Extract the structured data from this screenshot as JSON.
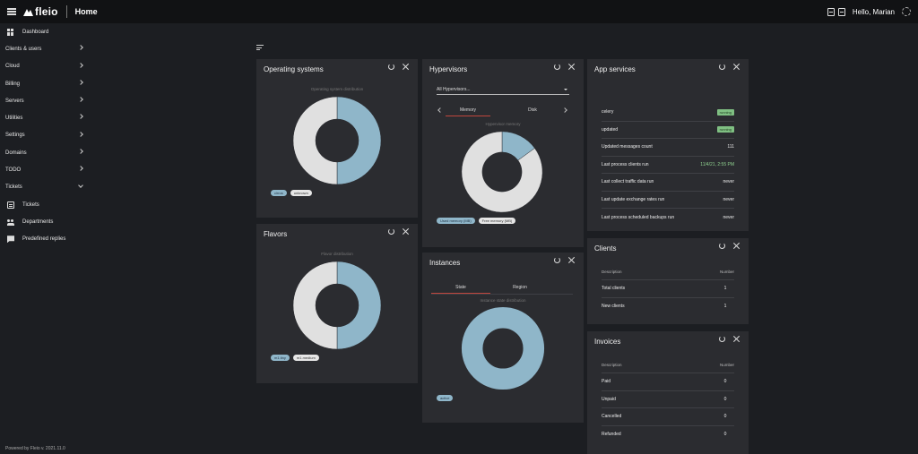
{
  "header": {
    "brand": "fleio",
    "page_title": "Home",
    "greeting": "Hello, Marian"
  },
  "sidebar": {
    "items": [
      {
        "label": "Dashboard",
        "icon": "dashboard-icon"
      },
      {
        "label": "Clients & users"
      },
      {
        "label": "Cloud"
      },
      {
        "label": "Billing"
      },
      {
        "label": "Servers"
      },
      {
        "label": "Utilities"
      },
      {
        "label": "Settings"
      },
      {
        "label": "Domains"
      },
      {
        "label": "TODO"
      },
      {
        "label": "Tickets"
      },
      {
        "label": "Tickets",
        "icon": "ticket-icon"
      },
      {
        "label": "Departments",
        "icon": "departments-icon"
      },
      {
        "label": "Predefined replies",
        "icon": "reply-icon"
      }
    ]
  },
  "footer": "Powered by Fleio v. 2021.11.0",
  "cards": {
    "os": {
      "title": "Operating systems",
      "chart_title": "Operating system distribution",
      "legend": [
        "cirros",
        "unknown"
      ]
    },
    "flavors": {
      "title": "Flavors",
      "chart_title": "Flavor distribution",
      "legend": [
        "m1.tiny",
        "m1.medium"
      ]
    },
    "hypervisors": {
      "title": "Hypervisors",
      "select_value": "All Hypervisors...",
      "tabs": [
        "Memory",
        "Disk"
      ],
      "chart_title": "Hypervisor memory",
      "legend": [
        "Used memory (MB)",
        "Free memory (MB)"
      ]
    },
    "instances": {
      "title": "Instances",
      "tabs": [
        "State",
        "Region"
      ],
      "chart_title": "Instance state distribution",
      "legend": [
        "active"
      ]
    },
    "app_services": {
      "title": "App services",
      "rows": [
        {
          "label": "celery",
          "value": "running"
        },
        {
          "label": "updated",
          "value": "running"
        },
        {
          "label": "Updated messages count",
          "value": "111"
        },
        {
          "label": "Last process clients run",
          "value": "11/4/21, 2:55 PM"
        },
        {
          "label": "Last collect traffic data run",
          "value": "never"
        },
        {
          "label": "Last update exchange rates run",
          "value": "never"
        },
        {
          "label": "Last process scheduled backups run",
          "value": "never"
        }
      ]
    },
    "clients": {
      "title": "Clients",
      "headers": [
        "Description",
        "Number"
      ],
      "rows": [
        {
          "label": "Total clients",
          "value": "1"
        },
        {
          "label": "New clients",
          "value": "1"
        }
      ]
    },
    "invoices": {
      "title": "Invoices",
      "headers": [
        "Description",
        "Number"
      ],
      "rows": [
        {
          "label": "Paid",
          "value": "0"
        },
        {
          "label": "Unpaid",
          "value": "0"
        },
        {
          "label": "Cancelled",
          "value": "0"
        },
        {
          "label": "Refunded",
          "value": "0"
        }
      ]
    }
  },
  "chart_data": [
    {
      "type": "pie",
      "categories": [
        "cirros",
        "unknown"
      ],
      "values": [
        50,
        50
      ]
    },
    {
      "type": "pie",
      "categories": [
        "m1.tiny",
        "m1.medium"
      ],
      "values": [
        50,
        50
      ]
    },
    {
      "type": "pie",
      "categories": [
        "Used memory (MB)",
        "Free memory (MB)"
      ],
      "values": [
        15,
        85
      ]
    },
    {
      "type": "pie",
      "categories": [
        "active"
      ],
      "values": [
        100
      ]
    }
  ],
  "colors": {
    "blue": "#8fb6c9",
    "grey": "#e0e0e0",
    "accent": "#c0463d"
  }
}
